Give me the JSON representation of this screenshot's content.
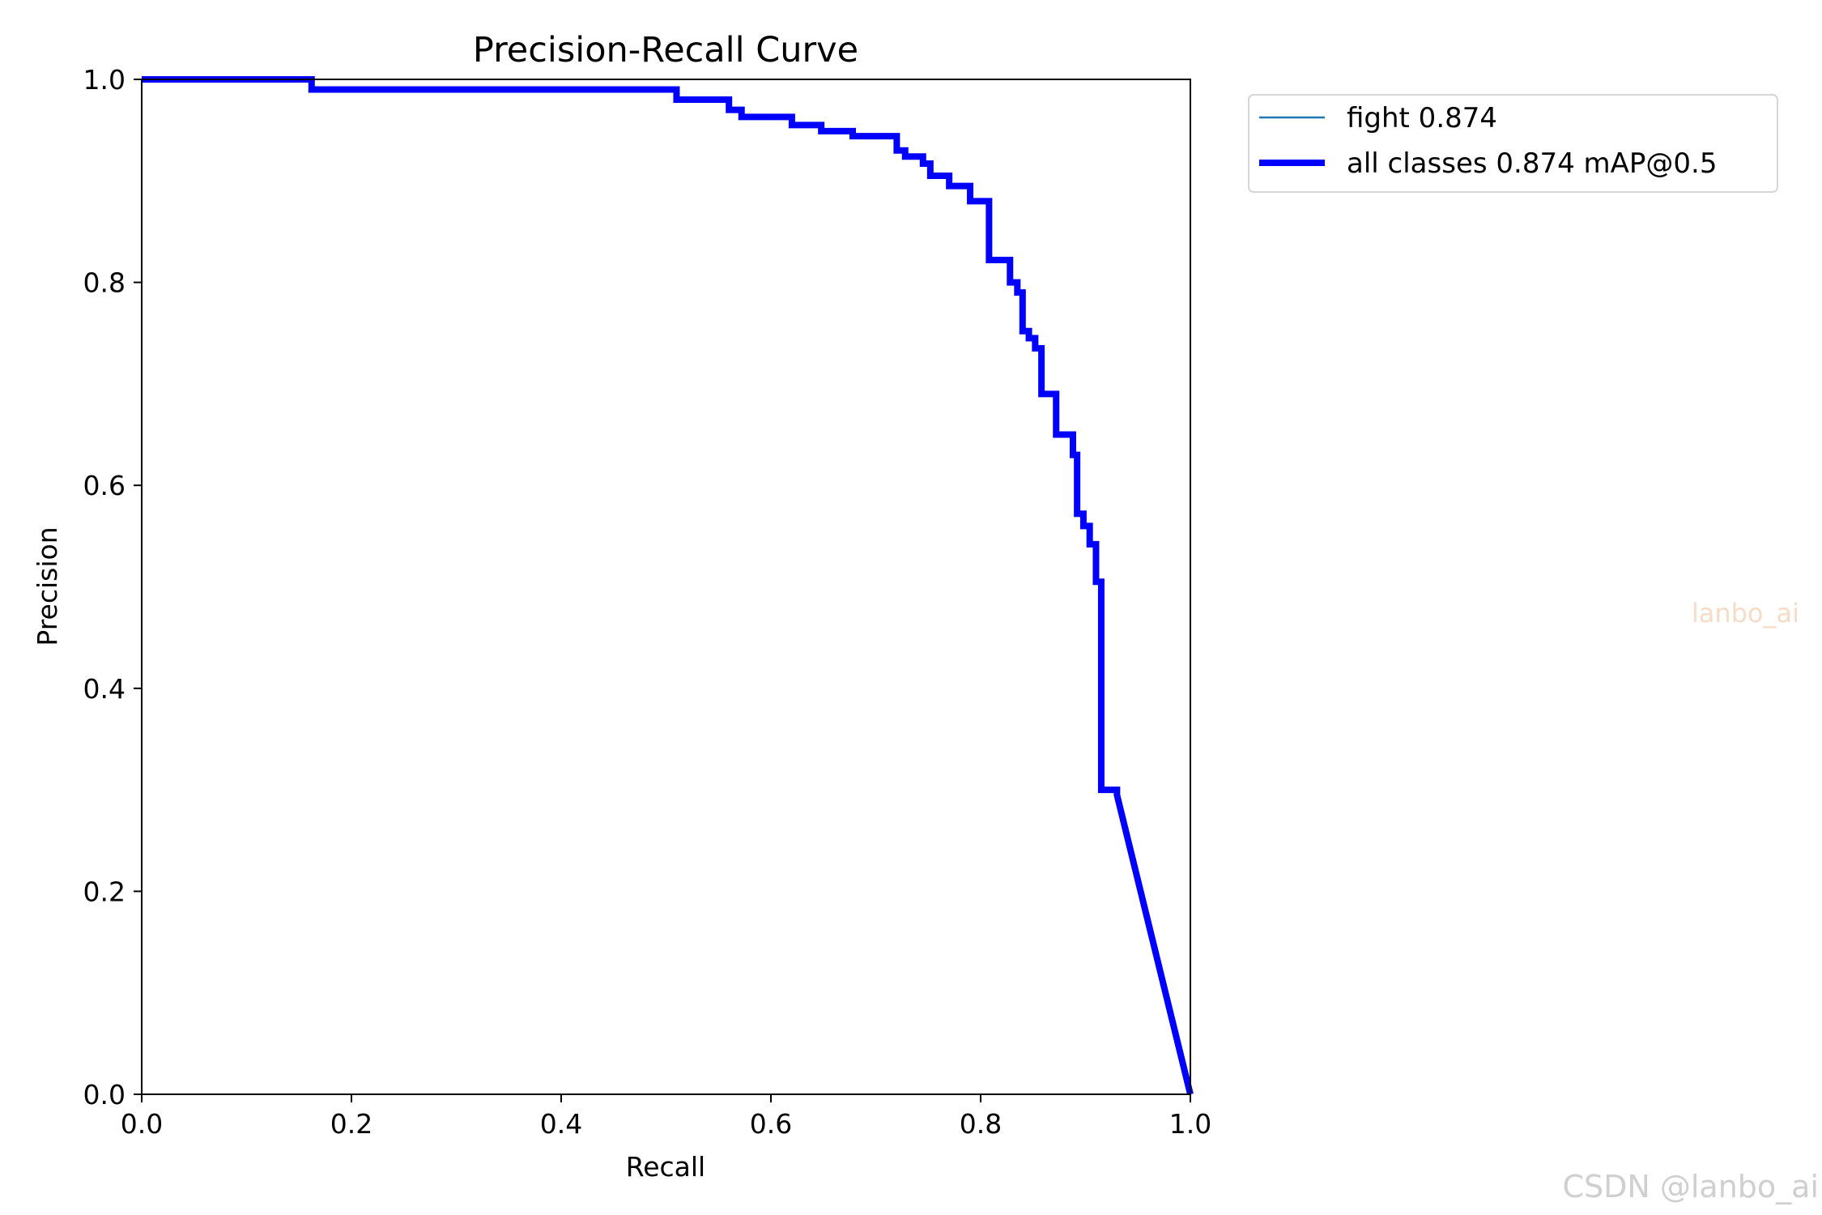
{
  "chart_data": {
    "type": "line",
    "title": "Precision-Recall Curve",
    "xlabel": "Recall",
    "ylabel": "Precision",
    "xlim": [
      0,
      1
    ],
    "ylim": [
      0,
      1
    ],
    "xticks": [
      "0.0",
      "0.2",
      "0.4",
      "0.6",
      "0.8",
      "1.0"
    ],
    "yticks": [
      "0.0",
      "0.2",
      "0.4",
      "0.6",
      "0.8",
      "1.0"
    ],
    "grid": false,
    "legend_position": "outside-top-right",
    "legend": [
      {
        "label": "fight 0.874",
        "color": "#1f77b4",
        "style": "thin"
      },
      {
        "label": "all classes 0.874 mAP@0.5",
        "color": "#0000ff",
        "style": "thick"
      }
    ],
    "series": [
      {
        "name": "fight 0.874",
        "color": "#1f77b4",
        "x": [
          0,
          0.162,
          0.162,
          0.51,
          0.51,
          0.56,
          0.56,
          0.572,
          0.572,
          0.62,
          0.62,
          0.648,
          0.648,
          0.678,
          0.678,
          0.72,
          0.72,
          0.728,
          0.728,
          0.745,
          0.745,
          0.752,
          0.752,
          0.77,
          0.77,
          0.79,
          0.79,
          0.808,
          0.808,
          0.828,
          0.828,
          0.835,
          0.835,
          0.84,
          0.84,
          0.846,
          0.846,
          0.852,
          0.852,
          0.858,
          0.858,
          0.872,
          0.872,
          0.888,
          0.888,
          0.892,
          0.892,
          0.898,
          0.898,
          0.904,
          0.904,
          0.91,
          0.91,
          0.915,
          0.915,
          0.93,
          0.93,
          1.0
        ],
        "y": [
          1.0,
          1.0,
          0.99,
          0.99,
          0.98,
          0.98,
          0.97,
          0.97,
          0.963,
          0.963,
          0.955,
          0.955,
          0.949,
          0.949,
          0.944,
          0.944,
          0.93,
          0.93,
          0.924,
          0.924,
          0.917,
          0.917,
          0.905,
          0.905,
          0.895,
          0.895,
          0.88,
          0.88,
          0.822,
          0.822,
          0.8,
          0.8,
          0.79,
          0.79,
          0.752,
          0.752,
          0.745,
          0.745,
          0.735,
          0.735,
          0.69,
          0.69,
          0.65,
          0.65,
          0.63,
          0.63,
          0.572,
          0.572,
          0.56,
          0.56,
          0.542,
          0.542,
          0.505,
          0.505,
          0.3,
          0.3,
          0.295,
          0.0
        ]
      },
      {
        "name": "all classes 0.874 mAP@0.5",
        "color": "#0000ff",
        "x": [
          0,
          0.162,
          0.162,
          0.51,
          0.51,
          0.56,
          0.56,
          0.572,
          0.572,
          0.62,
          0.62,
          0.648,
          0.648,
          0.678,
          0.678,
          0.72,
          0.72,
          0.728,
          0.728,
          0.745,
          0.745,
          0.752,
          0.752,
          0.77,
          0.77,
          0.79,
          0.79,
          0.808,
          0.808,
          0.828,
          0.828,
          0.835,
          0.835,
          0.84,
          0.84,
          0.846,
          0.846,
          0.852,
          0.852,
          0.858,
          0.858,
          0.872,
          0.872,
          0.888,
          0.888,
          0.892,
          0.892,
          0.898,
          0.898,
          0.904,
          0.904,
          0.91,
          0.91,
          0.915,
          0.915,
          0.93,
          0.93,
          1.0
        ],
        "y": [
          1.0,
          1.0,
          0.99,
          0.99,
          0.98,
          0.98,
          0.97,
          0.97,
          0.963,
          0.963,
          0.955,
          0.955,
          0.949,
          0.949,
          0.944,
          0.944,
          0.93,
          0.93,
          0.924,
          0.924,
          0.917,
          0.917,
          0.905,
          0.905,
          0.895,
          0.895,
          0.88,
          0.88,
          0.822,
          0.822,
          0.8,
          0.8,
          0.79,
          0.79,
          0.752,
          0.752,
          0.745,
          0.745,
          0.735,
          0.735,
          0.69,
          0.69,
          0.65,
          0.65,
          0.63,
          0.63,
          0.572,
          0.572,
          0.56,
          0.56,
          0.542,
          0.542,
          0.505,
          0.505,
          0.3,
          0.3,
          0.295,
          0.0
        ]
      }
    ]
  },
  "watermarks": {
    "faint": "lanbo_ai",
    "csdn": "CSDN @lanbo_ai"
  }
}
